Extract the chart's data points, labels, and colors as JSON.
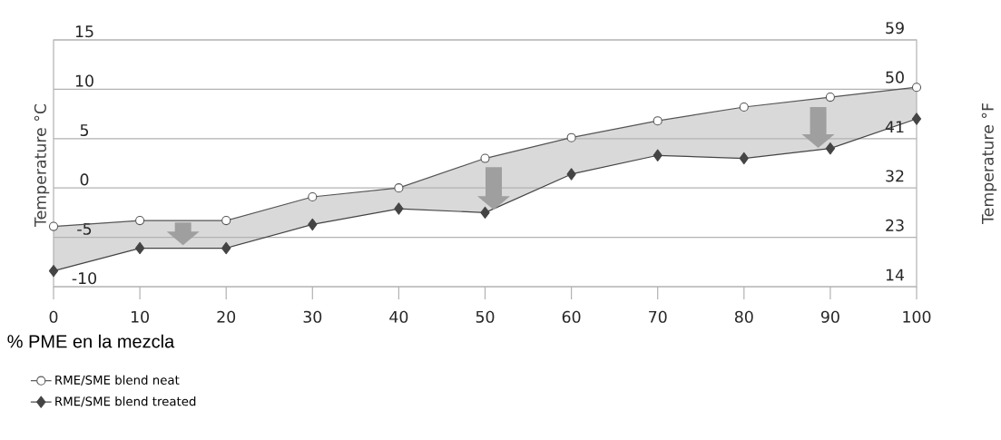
{
  "chart_data": {
    "type": "line",
    "x": [
      0,
      10,
      20,
      30,
      40,
      50,
      60,
      70,
      80,
      90,
      100
    ],
    "series": [
      {
        "name": "RME/SME blend neat",
        "color": "#555555",
        "marker": "circle",
        "values": [
          -3.9,
          -3.3,
          -3.3,
          -0.9,
          0.0,
          3.0,
          5.1,
          6.8,
          8.2,
          9.2,
          10.2
        ],
        "lower": [
          -8.4,
          -6.1,
          -6.1,
          -3.7,
          -2.1,
          -2.5,
          1.4,
          3.3,
          3.0,
          4.0,
          7.0
        ],
        "upper": [
          -3.9,
          -3.3,
          -3.3,
          -0.9,
          0.0,
          3.0,
          5.1,
          6.8,
          8.2,
          9.2,
          10.2
        ]
      },
      {
        "name": "RME/SME blend treated",
        "color": "#444444",
        "marker": "diamond",
        "values": [
          -8.4,
          -6.1,
          -6.1,
          -3.7,
          -2.1,
          -2.5,
          1.4,
          3.3,
          3.0,
          4.0,
          7.0
        ]
      }
    ],
    "xlabel": "% PME en la mezcla",
    "ylabel": "Temperature °C",
    "y2label": "Temperature °F",
    "xlim": [
      0,
      100
    ],
    "xticks": [
      0,
      10,
      20,
      30,
      40,
      50,
      60,
      70,
      80,
      90,
      100
    ],
    "ylim": [
      -10,
      15
    ],
    "yticks": [
      -10,
      -5,
      0,
      5,
      10,
      15
    ],
    "y2lim": [
      14,
      59
    ],
    "y2ticks": [
      14,
      23,
      32,
      41,
      50,
      59
    ],
    "grid": "y",
    "legend": "bottom left"
  }
}
